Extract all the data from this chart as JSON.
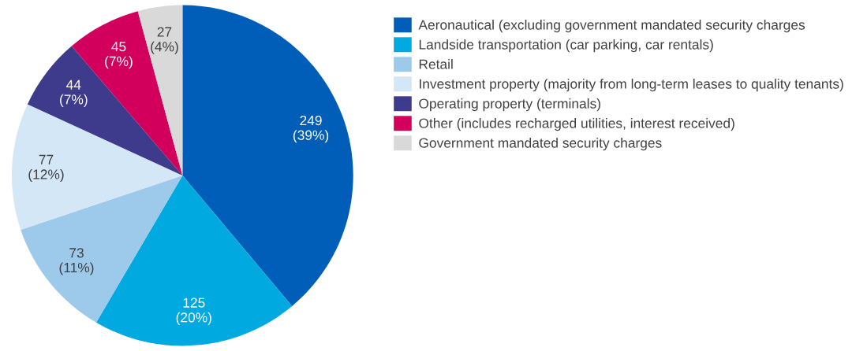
{
  "chart_data": {
    "type": "pie",
    "categories": [
      "Aeronautical (excluding government mandated security charges",
      "Landside transportation (car parking, car rentals)",
      "Retail",
      "Investment property (majority from long-term leases to quality tenants)",
      "Operating property (terminals)",
      "Other (includes recharged utilities, interest received)",
      "Government mandated security charges"
    ],
    "values": [
      249,
      125,
      73,
      77,
      44,
      45,
      27
    ],
    "value_labels": [
      "249\n(39%)",
      "125\n(20%)",
      "73\n(11%)",
      "77\n(12%)",
      "44\n(7%)",
      "45\n(7%)",
      "27\n(4%)"
    ],
    "colors": [
      "#005eb8",
      "#00a9e0",
      "#9dc9ea",
      "#d4e7f7",
      "#3e3a8c",
      "#d2005c",
      "#d9d9d9"
    ],
    "legend": "right"
  }
}
